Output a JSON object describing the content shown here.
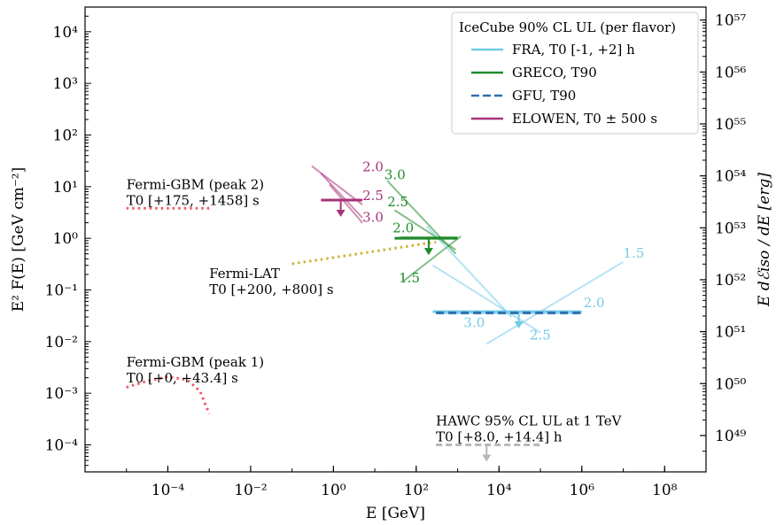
{
  "colors": {
    "fra": "#72cce8",
    "greco": "#1f8a2a",
    "gfu": "#2f6fb0",
    "elowen": "#a8337a",
    "gbm": "#ee5a6a",
    "lat": "#cdb43a",
    "hawc": "#b8b8b8"
  },
  "chart_data": {
    "type": "line",
    "x_scale": "log",
    "y_scale": "log",
    "xlim": [
      1e-06,
      1000000000.0
    ],
    "ylim": [
      3e-05,
      30000.0
    ],
    "y2lim_exponent": [
      48.3,
      57.25
    ],
    "xlabel": "E [GeV]",
    "ylabel": "E² F(E) [GeV cm⁻²]",
    "y2label": "E dℰiso / dE [erg]",
    "x_ticks": [
      {
        "exp": -4,
        "label": "10⁻⁴"
      },
      {
        "exp": -2,
        "label": "10⁻²"
      },
      {
        "exp": 0,
        "label": "10⁰"
      },
      {
        "exp": 2,
        "label": "10²"
      },
      {
        "exp": 4,
        "label": "10⁴"
      },
      {
        "exp": 6,
        "label": "10⁶"
      },
      {
        "exp": 8,
        "label": "10⁸"
      }
    ],
    "y_ticks": [
      {
        "exp": 4,
        "label": "10⁴"
      },
      {
        "exp": 3,
        "label": "10³"
      },
      {
        "exp": 2,
        "label": "10²"
      },
      {
        "exp": 1,
        "label": "10¹"
      },
      {
        "exp": 0,
        "label": "10⁰"
      },
      {
        "exp": -1,
        "label": "10⁻¹"
      },
      {
        "exp": -2,
        "label": "10⁻²"
      },
      {
        "exp": -3,
        "label": "10⁻³"
      },
      {
        "exp": -4,
        "label": "10⁻⁴"
      }
    ],
    "y2_ticks": [
      {
        "exp": 57,
        "label": "10⁵⁷"
      },
      {
        "exp": 56,
        "label": "10⁵⁶"
      },
      {
        "exp": 55,
        "label": "10⁵⁵"
      },
      {
        "exp": 54,
        "label": "10⁵⁴"
      },
      {
        "exp": 53,
        "label": "10⁵³"
      },
      {
        "exp": 52,
        "label": "10⁵²"
      },
      {
        "exp": 51,
        "label": "10⁵¹"
      },
      {
        "exp": 50,
        "label": "10⁵⁰"
      },
      {
        "exp": 49,
        "label": "10⁴⁹"
      }
    ],
    "legend": {
      "position": "upper right",
      "title": "IceCube 90% CL UL (per flavor)",
      "entries": [
        {
          "label": "FRA, T0 [-1, +2] h",
          "color": "#72cce8",
          "style": "solid"
        },
        {
          "label": "GRECO, T90",
          "color": "#1f8a2a",
          "style": "solid"
        },
        {
          "label": "GFU, T90",
          "color": "#2f6fb0",
          "style": "dashed"
        },
        {
          "label": "ELOWEN, T0 ± 500 s",
          "color": "#a8337a",
          "style": "solid"
        }
      ]
    },
    "upper_limits": [
      {
        "name": "ELOWEN",
        "color": "#a8337a",
        "xmin": 0.5,
        "xmax": 5,
        "y": 5.5,
        "arrow_x": 1.5
      },
      {
        "name": "GRECO",
        "color": "#1f8a2a",
        "xmin": 30,
        "xmax": 1000,
        "y": 1.0,
        "arrow_x": 200
      },
      {
        "name": "FRA",
        "color": "#72cce8",
        "xmin": 250,
        "xmax": 1000000,
        "y": 0.038,
        "arrow_x": 30000
      },
      {
        "name": "GFU",
        "color": "#2f6fb0",
        "xmin": 300,
        "xmax": 1000000,
        "y": 0.036,
        "dashed": true
      }
    ],
    "index_lines": [
      {
        "group": "ELOWEN",
        "color": "#a8337a",
        "index_label": "2.0",
        "points": [
          [
            0.3,
            25
          ],
          [
            5,
            4.5
          ]
        ]
      },
      {
        "group": "ELOWEN",
        "color": "#a8337a",
        "index_label": "2.5",
        "points": [
          [
            0.5,
            18
          ],
          [
            5,
            2.5
          ]
        ]
      },
      {
        "group": "ELOWEN",
        "color": "#a8337a",
        "index_label": "3.0",
        "points": [
          [
            0.8,
            11
          ],
          [
            5,
            2.0
          ]
        ]
      },
      {
        "group": "GRECO",
        "color": "#1f8a2a",
        "index_label": "3.0",
        "points": [
          [
            20,
            13
          ],
          [
            900,
            0.5
          ]
        ]
      },
      {
        "group": "GRECO",
        "color": "#1f8a2a",
        "index_label": "2.5",
        "points": [
          [
            30,
            3.5
          ],
          [
            900,
            0.6
          ]
        ]
      },
      {
        "group": "GRECO",
        "color": "#1f8a2a",
        "index_label": "2.0",
        "points": [
          [
            40,
            1.05
          ],
          [
            1000,
            1.05
          ]
        ]
      },
      {
        "group": "GRECO",
        "color": "#1f8a2a",
        "index_label": "1.5",
        "points": [
          [
            50,
            0.15
          ],
          [
            1200,
            1.1
          ]
        ]
      },
      {
        "group": "FRA",
        "color": "#72cce8",
        "index_label": "1.5",
        "points": [
          [
            5000,
            0.009
          ],
          [
            10000000,
            0.35
          ]
        ]
      },
      {
        "group": "FRA",
        "color": "#72cce8",
        "index_label": "2.0",
        "points": [
          [
            300,
            0.035
          ],
          [
            1000000,
            0.035
          ]
        ]
      },
      {
        "group": "FRA",
        "color": "#72cce8",
        "index_label": "2.5",
        "points": [
          [
            250,
            0.3
          ],
          [
            100000,
            0.015
          ]
        ]
      },
      {
        "group": "FRA",
        "color": "#72cce8",
        "index_label": "3.0",
        "points": [
          [
            180,
            1.7
          ],
          [
            20000,
            0.03
          ]
        ]
      }
    ],
    "index_label_positions": [
      {
        "group": "ELOWEN",
        "label": "2.0",
        "x": 5,
        "y": 20
      },
      {
        "group": "ELOWEN",
        "label": "2.5",
        "x": 5,
        "y": 5.5
      },
      {
        "group": "ELOWEN",
        "label": "3.0",
        "x": 5,
        "y": 2.1
      },
      {
        "group": "GRECO",
        "label": "3.0",
        "x": 17,
        "y": 14
      },
      {
        "group": "GRECO",
        "label": "2.5",
        "x": 20,
        "y": 4.2
      },
      {
        "group": "GRECO",
        "label": "2.0",
        "x": 27,
        "y": 1.3
      },
      {
        "group": "GRECO",
        "label": "1.5",
        "x": 38,
        "y": 0.14
      },
      {
        "group": "FRA",
        "label": "1.5",
        "x": 10000000,
        "y": 0.42
      },
      {
        "group": "FRA",
        "label": "2.0",
        "x": 1100000,
        "y": 0.046
      },
      {
        "group": "FRA",
        "label": "2.5",
        "x": 55000,
        "y": 0.011
      },
      {
        "group": "FRA",
        "label": "3.0",
        "x": 1400,
        "y": 0.019
      }
    ],
    "spectra": [
      {
        "name": "Fermi-GBM (peak 2)",
        "color": "#ee5a6a",
        "style": "dotted",
        "points": [
          [
            1e-05,
            3.8
          ],
          [
            0.001,
            3.8
          ]
        ]
      },
      {
        "name": "Fermi-GBM (peak 1)",
        "color": "#ee5a6a",
        "style": "dotted",
        "points": [
          [
            1e-05,
            0.0013
          ],
          [
            3e-05,
            0.0017
          ],
          [
            0.0001,
            0.0021
          ],
          [
            0.0003,
            0.0018
          ],
          [
            0.0006,
            0.0011
          ],
          [
            0.001,
            0.0004
          ]
        ]
      },
      {
        "name": "Fermi-LAT",
        "color": "#cdb43a",
        "style": "dotted",
        "points": [
          [
            0.1,
            0.32
          ],
          [
            300,
            0.85
          ]
        ]
      },
      {
        "name": "HAWC",
        "color": "#b8b8b8",
        "style": "dashed",
        "points": [
          [
            300,
            0.0001
          ],
          [
            100000,
            0.0001
          ]
        ],
        "arrow_x": 5000
      }
    ],
    "annotations": [
      {
        "lines": [
          "Fermi-GBM (peak 2)",
          "T0 [+175, +1458] s"
        ],
        "x": 1e-05,
        "y": 9
      },
      {
        "lines": [
          "Fermi-GBM (peak 1)",
          "T0 [+0, +43.4] s"
        ],
        "x": 1e-05,
        "y": 0.0033
      },
      {
        "lines": [
          "Fermi-LAT",
          "T0 [+200, +800] s"
        ],
        "x": 0.001,
        "y": 0.17
      },
      {
        "lines": [
          "HAWC 95% CL UL at 1 TeV",
          "T0 [+8.0, +14.4] h"
        ],
        "x": 300,
        "y": 0.00024
      }
    ]
  }
}
